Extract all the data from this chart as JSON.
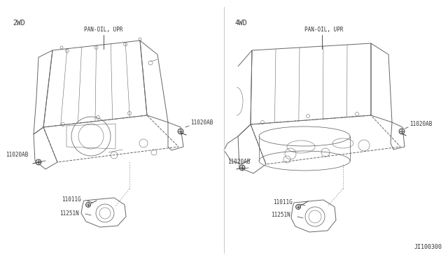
{
  "bg_color": "#ffffff",
  "fig_width": 6.4,
  "fig_height": 3.72,
  "dpi": 100,
  "line_color": "#666666",
  "dark_line": "#333333",
  "text_color": "#333333",
  "label_2wd": "2WD",
  "label_4wd": "4WD",
  "label_pan_oil_upr": "PAN-OIL, UPR",
  "label_11020ab": "11020AB",
  "label_11011g": "11011G",
  "label_11251n": "11251N",
  "label_ji100300": "JI100300",
  "font_size_header": 7,
  "font_size_label": 5.5,
  "font_size_ref": 6
}
